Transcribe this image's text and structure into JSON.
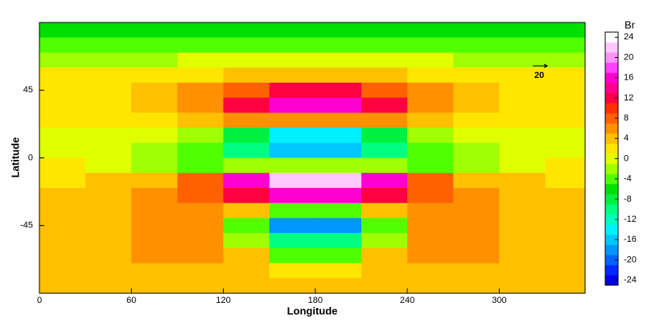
{
  "chart_data": {
    "type": "contour",
    "xlabel": "Longitude",
    "ylabel": "Latitude",
    "colorbar_title": "Br",
    "reference_vector": 20,
    "xlim": [
      0,
      356
    ],
    "ylim": [
      -90,
      90
    ],
    "xticks": [
      0,
      60,
      120,
      180,
      240,
      300
    ],
    "yticks": [
      -45,
      0,
      45
    ],
    "clim": [
      -25,
      25
    ],
    "cticks": [
      -24,
      -20,
      -16,
      -12,
      -8,
      -4,
      0,
      4,
      8,
      12,
      16,
      20,
      24
    ],
    "colors": [
      "#0000e8",
      "#0028ff",
      "#0064ff",
      "#0096ff",
      "#00c8ff",
      "#00f0ff",
      "#00ffc0",
      "#00ff80",
      "#00f040",
      "#00e000",
      "#50ff00",
      "#a0ff00",
      "#e0ff00",
      "#ffe600",
      "#ffc000",
      "#ff9000",
      "#ff6000",
      "#ff3000",
      "#ff0040",
      "#ff0090",
      "#ff00d0",
      "#ff40ff",
      "#ff90ff",
      "#ffc8ff",
      "#ffffff"
    ],
    "x": [
      15,
      45,
      75,
      105,
      135,
      165,
      195,
      225,
      255,
      285,
      315,
      345
    ],
    "y": [
      85,
      75,
      65,
      55,
      45,
      35,
      25,
      15,
      5,
      -5,
      -15,
      -25,
      -35,
      -45,
      -55,
      -65,
      -75,
      -85
    ],
    "z": [
      [
        -6,
        -6,
        -6,
        -6,
        -6,
        -6,
        -6,
        -6,
        -6,
        -6,
        -6,
        -6
      ],
      [
        -4,
        -4,
        -4,
        -4,
        -4,
        -4,
        -4,
        -4,
        -4,
        -4,
        -4,
        -4
      ],
      [
        -2,
        -2,
        -2,
        -1,
        -1,
        -1,
        -1,
        -1,
        -1,
        -2,
        -2,
        -2
      ],
      [
        1,
        1,
        1,
        2,
        3,
        3,
        3,
        3,
        2,
        1,
        1,
        1
      ],
      [
        1,
        2,
        3,
        5,
        8,
        11,
        11,
        8,
        5,
        3,
        2,
        1
      ],
      [
        2,
        2,
        4,
        6,
        11,
        16,
        16,
        11,
        6,
        4,
        2,
        2
      ],
      [
        1,
        1,
        2,
        3,
        5,
        6,
        6,
        5,
        3,
        2,
        1,
        1
      ],
      [
        0,
        0,
        -1,
        -3,
        -8,
        -14,
        -14,
        -8,
        -3,
        -1,
        0,
        0
      ],
      [
        0,
        -1,
        -2,
        -5,
        -10,
        -16,
        -16,
        -10,
        -5,
        -2,
        -1,
        0
      ],
      [
        1,
        0,
        -2,
        -4,
        -3,
        -2,
        -2,
        -3,
        -4,
        -2,
        0,
        1
      ],
      [
        2,
        3,
        4,
        8,
        16,
        22,
        22,
        16,
        8,
        4,
        3,
        2
      ],
      [
        3,
        4,
        5,
        8,
        12,
        16,
        16,
        12,
        8,
        5,
        4,
        3
      ],
      [
        3,
        4,
        5,
        6,
        3,
        -4,
        -4,
        3,
        6,
        5,
        4,
        3
      ],
      [
        3,
        4,
        5,
        5,
        -4,
        -18,
        -18,
        -4,
        5,
        5,
        4,
        3
      ],
      [
        3,
        4,
        5,
        6,
        -2,
        -10,
        -10,
        -2,
        6,
        5,
        4,
        3
      ],
      [
        3,
        4,
        5,
        6,
        3,
        -4,
        -4,
        3,
        6,
        5,
        4,
        3
      ],
      [
        3,
        3,
        4,
        4,
        3,
        1,
        1,
        3,
        4,
        4,
        3,
        3
      ],
      [
        4,
        4,
        4,
        4,
        4,
        4,
        4,
        4,
        4,
        4,
        4,
        4
      ]
    ]
  }
}
